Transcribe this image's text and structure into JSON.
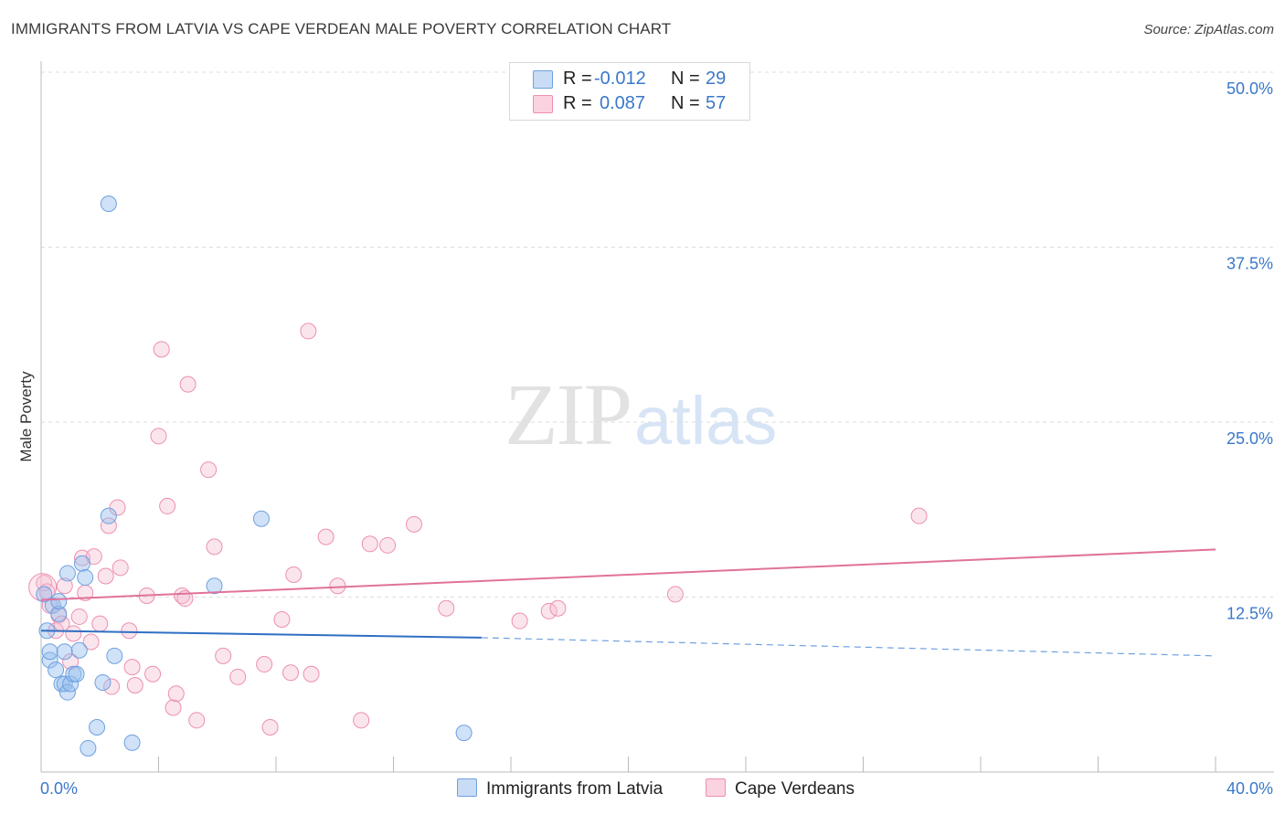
{
  "title": "IMMIGRANTS FROM LATVIA VS CAPE VERDEAN MALE POVERTY CORRELATION CHART",
  "source": "Source: ZipAtlas.com",
  "watermark": {
    "zip": "ZIP",
    "atlas": "atlas"
  },
  "legend": {
    "rows": [
      {
        "r_label": "R =",
        "r_value": "-0.012",
        "n_label": "N =",
        "n_value": "29",
        "color": "#6fa0e0",
        "fill": "#c9dcf5"
      },
      {
        "r_label": "R =",
        "r_value": "0.087",
        "n_label": "N =",
        "n_value": "57",
        "color": "#ec8fb0",
        "fill": "#fbd3e0"
      }
    ]
  },
  "bottom_legend": {
    "series1": "Immigrants from Latvia",
    "series2": "Cape Verdeans"
  },
  "chart_data": {
    "type": "scatter",
    "title": "IMMIGRANTS FROM LATVIA VS CAPE VERDEAN MALE POVERTY CORRELATION CHART",
    "xlabel": "",
    "ylabel": "Male Poverty",
    "xlim": [
      0,
      40
    ],
    "ylim": [
      0,
      50
    ],
    "y_ticks": [
      12.5,
      25.0,
      37.5,
      50.0
    ],
    "y_tick_labels": [
      "12.5%",
      "25.0%",
      "37.5%",
      "50.0%"
    ],
    "x_tick_labels": [
      "0.0%",
      "40.0%"
    ],
    "series": [
      {
        "name": "Immigrants from Latvia",
        "color": "#3b78c9",
        "r": -0.012,
        "n": 29,
        "trend": {
          "x": [
            0,
            15.0
          ],
          "y": [
            10.1,
            9.6
          ],
          "dashed_to": [
            40,
            8.3
          ]
        },
        "points": [
          [
            0.1,
            12.7
          ],
          [
            0.2,
            10.1
          ],
          [
            0.3,
            8.0
          ],
          [
            0.3,
            8.6
          ],
          [
            0.4,
            11.9
          ],
          [
            0.5,
            7.3
          ],
          [
            0.6,
            11.3
          ],
          [
            0.6,
            12.2
          ],
          [
            0.7,
            6.3
          ],
          [
            0.8,
            8.6
          ],
          [
            0.8,
            6.3
          ],
          [
            0.9,
            14.2
          ],
          [
            0.9,
            5.7
          ],
          [
            1.0,
            6.3
          ],
          [
            1.1,
            7.0
          ],
          [
            1.2,
            7.0
          ],
          [
            1.3,
            8.7
          ],
          [
            1.4,
            14.9
          ],
          [
            1.5,
            13.9
          ],
          [
            1.6,
            1.7
          ],
          [
            1.9,
            3.2
          ],
          [
            2.1,
            6.4
          ],
          [
            2.3,
            40.6
          ],
          [
            2.3,
            18.3
          ],
          [
            2.5,
            8.3
          ],
          [
            3.1,
            2.1
          ],
          [
            5.9,
            13.3
          ],
          [
            7.5,
            18.1
          ],
          [
            14.4,
            2.8
          ]
        ]
      },
      {
        "name": "Cape Verdeans",
        "color": "#e0729a",
        "r": 0.087,
        "n": 57,
        "trend": {
          "x": [
            0,
            40
          ],
          "y": [
            12.3,
            15.9
          ]
        },
        "points": [
          [
            0.1,
            13.5
          ],
          [
            0.3,
            11.9
          ],
          [
            0.5,
            10.1
          ],
          [
            0.6,
            11.2
          ],
          [
            0.7,
            10.6
          ],
          [
            0.8,
            13.3
          ],
          [
            1.0,
            7.9
          ],
          [
            1.1,
            9.9
          ],
          [
            1.3,
            11.1
          ],
          [
            1.4,
            15.3
          ],
          [
            1.5,
            12.8
          ],
          [
            1.7,
            9.3
          ],
          [
            1.8,
            15.4
          ],
          [
            2.0,
            10.6
          ],
          [
            2.2,
            14.0
          ],
          [
            2.3,
            17.6
          ],
          [
            2.4,
            6.1
          ],
          [
            2.6,
            18.9
          ],
          [
            2.7,
            14.6
          ],
          [
            3.0,
            10.1
          ],
          [
            3.1,
            7.5
          ],
          [
            3.2,
            6.2
          ],
          [
            3.6,
            12.6
          ],
          [
            3.8,
            7.0
          ],
          [
            4.0,
            24.0
          ],
          [
            4.1,
            30.2
          ],
          [
            4.3,
            19.0
          ],
          [
            4.5,
            4.6
          ],
          [
            4.6,
            5.6
          ],
          [
            4.8,
            12.6
          ],
          [
            4.9,
            12.4
          ],
          [
            5.0,
            27.7
          ],
          [
            5.3,
            3.7
          ],
          [
            5.7,
            21.6
          ],
          [
            5.9,
            16.1
          ],
          [
            6.2,
            8.3
          ],
          [
            6.7,
            6.8
          ],
          [
            7.6,
            7.7
          ],
          [
            7.8,
            3.2
          ],
          [
            8.2,
            10.9
          ],
          [
            8.5,
            7.1
          ],
          [
            8.6,
            14.1
          ],
          [
            9.1,
            31.5
          ],
          [
            9.2,
            7.0
          ],
          [
            9.7,
            16.8
          ],
          [
            10.1,
            13.3
          ],
          [
            10.9,
            3.7
          ],
          [
            11.2,
            16.3
          ],
          [
            11.8,
            16.2
          ],
          [
            12.7,
            17.7
          ],
          [
            13.8,
            11.7
          ],
          [
            16.3,
            10.8
          ],
          [
            17.3,
            11.5
          ],
          [
            17.6,
            11.7
          ],
          [
            21.6,
            12.7
          ],
          [
            29.9,
            18.3
          ],
          [
            0.2,
            12.9
          ]
        ]
      }
    ]
  }
}
